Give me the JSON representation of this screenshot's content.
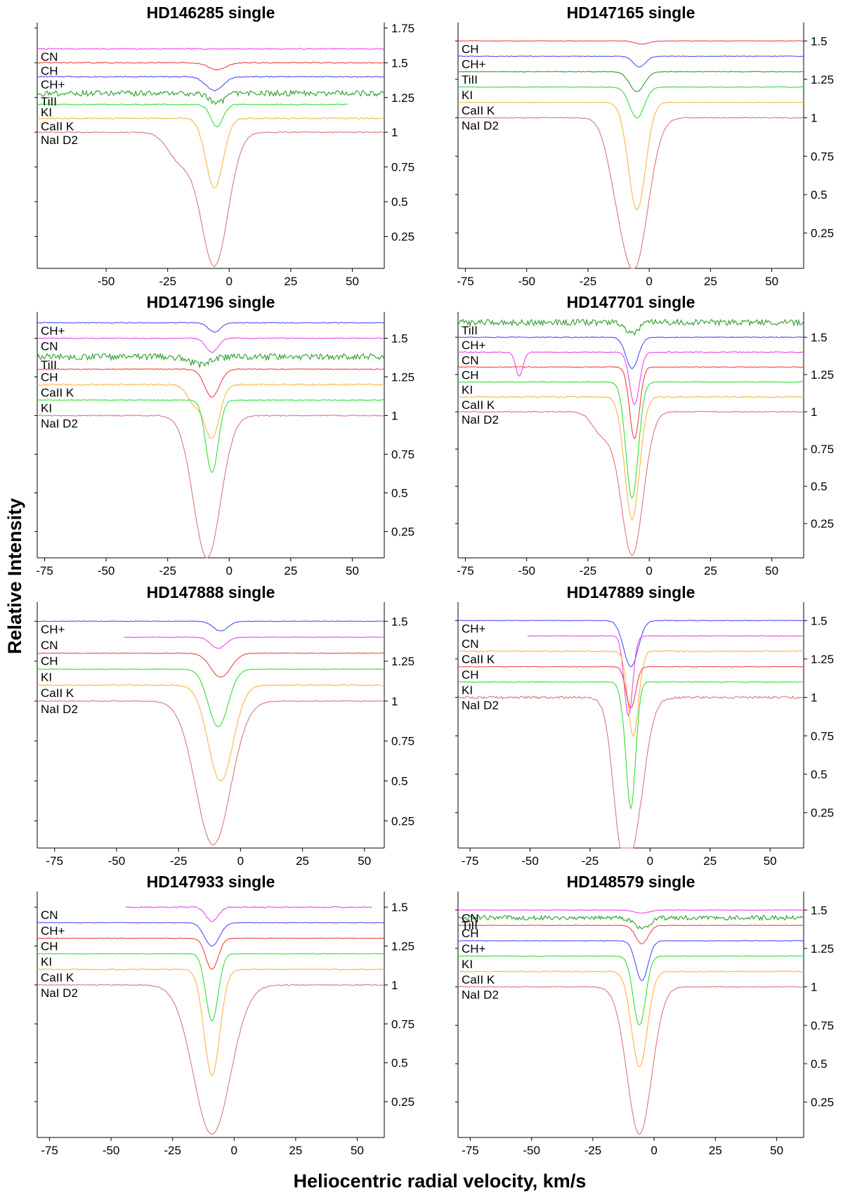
{
  "figure": {
    "xlabel": "Heliocentric radial velocity, km/s",
    "ylabel": "Relative Intensity",
    "colors": {
      "NaI D2": "#d87878",
      "CaII K": "#ffb347",
      "KI": "#33dd33",
      "CH": "#ee4444",
      "CH+": "#4d4dff",
      "CN": "#ee44ee",
      "TiII": "#2e9a2e"
    }
  },
  "chart_data": [
    {
      "type": "line",
      "title": "HD146285 single",
      "xlim": [
        -78,
        63
      ],
      "ylim": [
        0.02,
        1.79
      ],
      "xticks": [
        -50,
        -25,
        0,
        25,
        50
      ],
      "xtick_labels": [
        "-50",
        "-25",
        "0",
        "25",
        "50"
      ],
      "yticks": [
        0.25,
        0.5,
        0.75,
        1,
        1.25,
        1.5,
        1.75
      ],
      "ytick_labels": [
        "0.25",
        "0.5",
        "0.75",
        "1",
        "1.25",
        "1.5",
        "1.75"
      ],
      "series": [
        {
          "name": "CN",
          "label": "",
          "base": 1.6,
          "depth": 0.0,
          "center": -5,
          "width": 4,
          "noise": 0.004,
          "xmin": -78,
          "xmax": 63
        },
        {
          "name": "CH",
          "label": "CN",
          "base": 1.5,
          "depth": 0.05,
          "center": -5,
          "width": 3.5,
          "noise": 0.004,
          "xmin": -78,
          "xmax": 63
        },
        {
          "name": "CH+",
          "label": "CH",
          "base": 1.4,
          "depth": 0.1,
          "center": -6,
          "width": 3.5,
          "noise": 0.004,
          "xmin": -78,
          "xmax": 63
        },
        {
          "name": "TiII",
          "label": "CH+",
          "base": 1.28,
          "depth": 0.07,
          "center": -5,
          "width": 3,
          "noise": 0.02,
          "xmin": -78,
          "xmax": 63
        },
        {
          "name": "KI",
          "label": "TiII",
          "base": 1.2,
          "depth": 0.16,
          "center": -5,
          "width": 2.5,
          "noise": 0.004,
          "xmin": -78,
          "xmax": 48
        },
        {
          "name": "CaII K",
          "label": "KI",
          "base": 1.1,
          "depth": 0.5,
          "center": -6,
          "width": 3.5,
          "noise": 0.005,
          "xmin": -78,
          "xmax": 63
        },
        {
          "name": "NaI D2",
          "label": "CaII K",
          "base": 1.0,
          "depth": 0.96,
          "center": -6,
          "width": 5.5,
          "noise": 0.004,
          "xmin": -78,
          "xmax": 63,
          "wing_center": -20,
          "wing_depth": 0.2,
          "wing_width": 5
        },
        {
          "name": "",
          "label": "NaI D2",
          "base": null
        }
      ]
    },
    {
      "type": "line",
      "title": "HD147165 single",
      "xlim": [
        -78,
        63
      ],
      "ylim": [
        0.02,
        1.62
      ],
      "xticks": [
        -75,
        -50,
        -25,
        0,
        25,
        50
      ],
      "xtick_labels": [
        "-75",
        "-50",
        "-25",
        "0",
        "25",
        "50"
      ],
      "yticks": [
        0.25,
        0.5,
        0.75,
        1,
        1.25,
        1.5
      ],
      "ytick_labels": [
        "0.25",
        "0.5",
        "0.75",
        "1",
        "1.25",
        "1.5"
      ],
      "series": [
        {
          "name": "CH",
          "label": "",
          "base": 1.5,
          "depth": 0.02,
          "center": -3,
          "width": 3,
          "noise": 0.002,
          "xmin": -78,
          "xmax": 63
        },
        {
          "name": "CH+",
          "label": "CH",
          "base": 1.4,
          "depth": 0.07,
          "center": -4,
          "width": 2.5,
          "noise": 0.002,
          "xmin": -78,
          "xmax": 63
        },
        {
          "name": "TiII",
          "label": "CH+",
          "base": 1.3,
          "depth": 0.13,
          "center": -5,
          "width": 3,
          "noise": 0.002,
          "xmin": -78,
          "xmax": 63
        },
        {
          "name": "KI",
          "label": "TiII",
          "base": 1.2,
          "depth": 0.2,
          "center": -5,
          "width": 3,
          "noise": 0.002,
          "xmin": -78,
          "xmax": 63
        },
        {
          "name": "CaII K",
          "label": "KI",
          "base": 1.1,
          "depth": 0.7,
          "center": -5,
          "width": 3.5,
          "noise": 0.002,
          "xmin": -78,
          "xmax": 63
        },
        {
          "name": "NaI D2",
          "label": "CaII K",
          "base": 1.0,
          "depth": 0.96,
          "center": -6,
          "width": 5.5,
          "noise": 0.003,
          "xmin": -78,
          "xmax": 63,
          "wing_center": -14,
          "wing_depth": 0.2,
          "wing_width": 4
        },
        {
          "name": "",
          "label": "NaI D2",
          "base": null
        }
      ]
    },
    {
      "type": "line",
      "title": "HD147196 single",
      "xlim": [
        -78,
        63
      ],
      "ylim": [
        0.08,
        1.67
      ],
      "xticks": [
        -75,
        -50,
        -25,
        0,
        25,
        50
      ],
      "xtick_labels": [
        "-75",
        "-50",
        "-25",
        "0",
        "25",
        "50"
      ],
      "yticks": [
        0.25,
        0.5,
        0.75,
        1,
        1.25,
        1.5
      ],
      "ytick_labels": [
        "0.25",
        "0.5",
        "0.75",
        "1",
        "1.25",
        "1.5"
      ],
      "series": [
        {
          "name": "CH+",
          "label": "",
          "base": 1.6,
          "depth": 0.06,
          "center": -6,
          "width": 2.5,
          "noise": 0.003,
          "xmin": -78,
          "xmax": 63
        },
        {
          "name": "CN",
          "label": "CH+",
          "base": 1.5,
          "depth": 0.09,
          "center": -7,
          "width": 2.5,
          "noise": 0.003,
          "xmin": -78,
          "xmax": 63
        },
        {
          "name": "TiII",
          "label": "CN",
          "base": 1.38,
          "depth": 0.05,
          "center": -12,
          "width": 4,
          "noise": 0.02,
          "xmin": -78,
          "xmax": 63
        },
        {
          "name": "CH",
          "label": "TiII",
          "base": 1.3,
          "depth": 0.18,
          "center": -7,
          "width": 3,
          "noise": 0.003,
          "xmin": -78,
          "xmax": 63
        },
        {
          "name": "CaII K",
          "label": "CH",
          "base": 1.2,
          "depth": 0.34,
          "center": -7,
          "width": 3,
          "noise": 0.005,
          "xmin": -78,
          "xmax": 63,
          "wing_center": -14,
          "wing_depth": 0.12,
          "wing_width": 3
        },
        {
          "name": "KI",
          "label": "CaII K",
          "base": 1.1,
          "depth": 0.47,
          "center": -7,
          "width": 2.5,
          "noise": 0.003,
          "xmin": -78,
          "xmax": 63
        },
        {
          "name": "NaI D2",
          "label": "KI",
          "base": 1.0,
          "depth": 0.92,
          "center": -9,
          "width": 5.5,
          "noise": 0.004,
          "xmin": -78,
          "xmax": 63
        },
        {
          "name": "",
          "label": "NaI D2",
          "base": null
        }
      ]
    },
    {
      "type": "line",
      "title": "HD147701 single",
      "xlim": [
        -78,
        63
      ],
      "ylim": [
        0.02,
        1.67
      ],
      "xticks": [
        -75,
        -50,
        -25,
        0,
        25,
        50
      ],
      "xtick_labels": [
        "-75",
        "-50",
        "-25",
        "0",
        "25",
        "50"
      ],
      "yticks": [
        0.25,
        0.5,
        0.75,
        1,
        1.25,
        1.5
      ],
      "ytick_labels": [
        "0.25",
        "0.5",
        "0.75",
        "1",
        "1.25",
        "1.5"
      ],
      "series": [
        {
          "name": "TiII",
          "label": "",
          "base": 1.6,
          "depth": 0.08,
          "center": -7,
          "width": 2.5,
          "noise": 0.02,
          "xmin": -78,
          "xmax": 63
        },
        {
          "name": "CH+",
          "label": "TiII",
          "base": 1.5,
          "depth": 0.21,
          "center": -7,
          "width": 2.5,
          "noise": 0.003,
          "xmin": -78,
          "xmax": 63
        },
        {
          "name": "CN",
          "label": "CH+",
          "base": 1.4,
          "depth": 0.35,
          "center": -6,
          "width": 2,
          "noise": 0.003,
          "xmin": -78,
          "xmax": 63,
          "wing_center": -53,
          "wing_depth": 0.16,
          "wing_width": 1.5
        },
        {
          "name": "CH",
          "label": "CN",
          "base": 1.3,
          "depth": 0.48,
          "center": -6,
          "width": 2,
          "noise": 0.003,
          "xmin": -78,
          "xmax": 63
        },
        {
          "name": "KI",
          "label": "CH",
          "base": 1.2,
          "depth": 0.78,
          "center": -7,
          "width": 2.5,
          "noise": 0.003,
          "xmin": -78,
          "xmax": 63
        },
        {
          "name": "CaII K",
          "label": "KI",
          "base": 1.1,
          "depth": 0.82,
          "center": -7,
          "width": 3,
          "noise": 0.005,
          "xmin": -78,
          "xmax": 63
        },
        {
          "name": "NaI D2",
          "label": "CaII K",
          "base": 1.0,
          "depth": 0.96,
          "center": -7,
          "width": 4.5,
          "noise": 0.004,
          "xmin": -78,
          "xmax": 63,
          "wing_center": -19,
          "wing_depth": 0.15,
          "wing_width": 4
        },
        {
          "name": "",
          "label": "NaI D2",
          "base": null
        }
      ]
    },
    {
      "type": "line",
      "title": "HD147888 single",
      "xlim": [
        -82,
        58
      ],
      "ylim": [
        0.08,
        1.62
      ],
      "xticks": [
        -75,
        -50,
        -25,
        0,
        25,
        50
      ],
      "xtick_labels": [
        "-75",
        "-50",
        "-25",
        "0",
        "25",
        "50"
      ],
      "yticks": [
        0.25,
        0.5,
        0.75,
        1,
        1.25,
        1.5
      ],
      "ytick_labels": [
        "0.25",
        "0.5",
        "0.75",
        "1",
        "1.25",
        "1.5"
      ],
      "series": [
        {
          "name": "CH+",
          "label": "",
          "base": 1.5,
          "depth": 0.06,
          "center": -8,
          "width": 3,
          "noise": 0.002,
          "xmin": -82,
          "xmax": 58
        },
        {
          "name": "CN",
          "label": "CH+",
          "base": 1.4,
          "depth": 0.07,
          "center": -9,
          "width": 3,
          "noise": 0.002,
          "xmin": -47,
          "xmax": 58
        },
        {
          "name": "CH",
          "label": "CN",
          "base": 1.3,
          "depth": 0.15,
          "center": -8,
          "width": 4,
          "noise": 0.002,
          "xmin": -82,
          "xmax": 58
        },
        {
          "name": "KI",
          "label": "CH",
          "base": 1.2,
          "depth": 0.36,
          "center": -9,
          "width": 4,
          "noise": 0.002,
          "xmin": -82,
          "xmax": 58
        },
        {
          "name": "CaII K",
          "label": "KI",
          "base": 1.1,
          "depth": 0.6,
          "center": -8,
          "width": 5,
          "noise": 0.004,
          "xmin": -82,
          "xmax": 58
        },
        {
          "name": "NaI D2",
          "label": "CaII K",
          "base": 1.0,
          "depth": 0.9,
          "center": -11,
          "width": 7,
          "noise": 0.003,
          "xmin": -82,
          "xmax": 58
        },
        {
          "name": "",
          "label": "NaI D2",
          "base": null
        }
      ]
    },
    {
      "type": "line",
      "title": "HD147889 single",
      "xlim": [
        -80,
        64
      ],
      "ylim": [
        0.02,
        1.62
      ],
      "xticks": [
        -75,
        -50,
        -25,
        0,
        25,
        50
      ],
      "xtick_labels": [
        "-75",
        "-50",
        "-25",
        "0",
        "25",
        "50"
      ],
      "yticks": [
        0.25,
        0.5,
        0.75,
        1,
        1.25,
        1.5
      ],
      "ytick_labels": [
        "0.25",
        "0.5",
        "0.75",
        "1",
        "1.25",
        "1.5"
      ],
      "series": [
        {
          "name": "CH+",
          "label": "",
          "base": 1.5,
          "depth": 0.3,
          "center": -8,
          "width": 3,
          "noise": 0.002,
          "xmin": -80,
          "xmax": 64
        },
        {
          "name": "CN",
          "label": "CH+",
          "base": 1.4,
          "depth": 0.52,
          "center": -9,
          "width": 1.8,
          "noise": 0.002,
          "xmin": -51,
          "xmax": 64
        },
        {
          "name": "CaII K",
          "label": "CN",
          "base": 1.3,
          "depth": 0.55,
          "center": -7,
          "width": 2.2,
          "noise": 0.004,
          "xmin": -80,
          "xmax": 64
        },
        {
          "name": "CH",
          "label": "CaII K",
          "base": 1.2,
          "depth": 0.27,
          "center": -8,
          "width": 2,
          "noise": 0.002,
          "xmin": -80,
          "xmax": 64
        },
        {
          "name": "KI",
          "label": "CH",
          "base": 1.1,
          "depth": 0.82,
          "center": -8,
          "width": 2,
          "noise": 0.003,
          "xmin": -80,
          "xmax": 64,
          "wing_center": -12,
          "wing_depth": 0.05,
          "wing_width": 1.5
        },
        {
          "name": "NaI D2",
          "label": "KI",
          "base": 1.0,
          "depth": 0.96,
          "center": -8,
          "width": 5,
          "noise": 0.008,
          "xmin": -80,
          "xmax": 64,
          "wing_center": -13,
          "wing_depth": 0.35,
          "wing_width": 3
        },
        {
          "name": "",
          "label": "NaI D2",
          "base": null
        }
      ]
    },
    {
      "type": "line",
      "title": "HD147933 single",
      "xlim": [
        -80,
        61
      ],
      "ylim": [
        0.02,
        1.6
      ],
      "xticks": [
        -75,
        -50,
        -25,
        0,
        25,
        50
      ],
      "xtick_labels": [
        "-75",
        "-50",
        "-25",
        "0",
        "25",
        "50"
      ],
      "yticks": [
        0.25,
        0.5,
        0.75,
        1,
        1.25,
        1.5
      ],
      "ytick_labels": [
        "0.25",
        "0.5",
        "0.75",
        "1",
        "1.25",
        "1.5"
      ],
      "series": [
        {
          "name": "CN",
          "label": "",
          "base": 1.5,
          "depth": 0.09,
          "center": -9,
          "width": 2.5,
          "noise": 0.004,
          "xmin": -44,
          "xmax": 56
        },
        {
          "name": "CH+",
          "label": "CN",
          "base": 1.4,
          "depth": 0.15,
          "center": -9,
          "width": 3,
          "noise": 0.002,
          "xmin": -80,
          "xmax": 61
        },
        {
          "name": "CH",
          "label": "CH+",
          "base": 1.3,
          "depth": 0.2,
          "center": -9,
          "width": 2.5,
          "noise": 0.002,
          "xmin": -80,
          "xmax": 61
        },
        {
          "name": "KI",
          "label": "CH",
          "base": 1.2,
          "depth": 0.43,
          "center": -9,
          "width": 2.5,
          "noise": 0.002,
          "xmin": -80,
          "xmax": 61
        },
        {
          "name": "CaII K",
          "label": "KI",
          "base": 1.1,
          "depth": 0.68,
          "center": -9,
          "width": 3.2,
          "noise": 0.004,
          "xmin": -80,
          "xmax": 61
        },
        {
          "name": "NaI D2",
          "label": "CaII K",
          "base": 1.0,
          "depth": 0.96,
          "center": -9,
          "width": 7.5,
          "noise": 0.003,
          "xmin": -80,
          "xmax": 61
        },
        {
          "name": "",
          "label": "NaI D2",
          "base": null
        }
      ]
    },
    {
      "type": "line",
      "title": "HD148579 single",
      "xlim": [
        -80,
        61
      ],
      "ylim": [
        0.02,
        1.62
      ],
      "xticks": [
        -75,
        -50,
        -25,
        0,
        25,
        50
      ],
      "xtick_labels": [
        "-75",
        "-50",
        "-25",
        "0",
        "25",
        "50"
      ],
      "yticks": [
        0.25,
        0.5,
        0.75,
        1,
        1.25,
        1.5
      ],
      "ytick_labels": [
        "0.25",
        "0.5",
        "0.75",
        "1",
        "1.25",
        "1.5"
      ],
      "series": [
        {
          "name": "CN",
          "label": "",
          "base": 1.5,
          "depth": 0.02,
          "center": -5,
          "width": 3,
          "noise": 0.002,
          "xmin": -80,
          "xmax": 61
        },
        {
          "name": "TiII",
          "label": "CN",
          "base": 1.45,
          "depth": 0.07,
          "center": -5,
          "width": 3,
          "noise": 0.015,
          "xmin": -80,
          "xmax": 61
        },
        {
          "name": "CH",
          "label": "TiII",
          "base": 1.4,
          "depth": 0.12,
          "center": -5,
          "width": 2.5,
          "noise": 0.002,
          "xmin": -80,
          "xmax": 61
        },
        {
          "name": "CH+",
          "label": "CH",
          "base": 1.3,
          "depth": 0.26,
          "center": -5,
          "width": 2.5,
          "noise": 0.002,
          "xmin": -80,
          "xmax": 61
        },
        {
          "name": "KI",
          "label": "CH+",
          "base": 1.2,
          "depth": 0.45,
          "center": -6,
          "width": 2.5,
          "noise": 0.002,
          "xmin": -80,
          "xmax": 61
        },
        {
          "name": "CaII K",
          "label": "KI",
          "base": 1.1,
          "depth": 0.62,
          "center": -6,
          "width": 3.2,
          "noise": 0.004,
          "xmin": -80,
          "xmax": 61
        },
        {
          "name": "NaI D2",
          "label": "CaII K",
          "base": 1.0,
          "depth": 0.96,
          "center": -6,
          "width": 5,
          "noise": 0.003,
          "xmin": -80,
          "xmax": 61
        },
        {
          "name": "",
          "label": "NaI D2",
          "base": null
        }
      ]
    }
  ]
}
